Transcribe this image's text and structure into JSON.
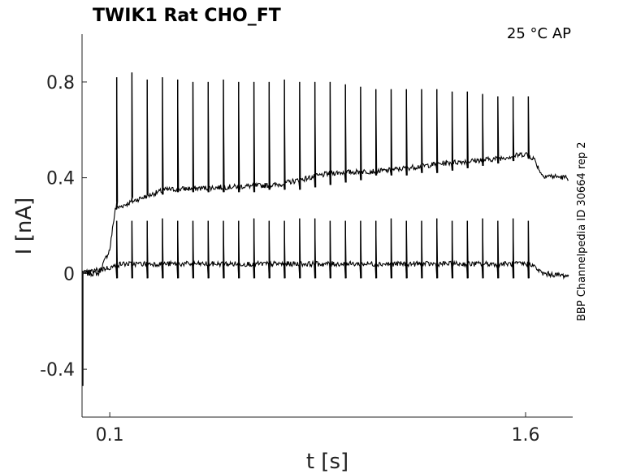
{
  "chart_data": {
    "type": "line",
    "title": "TWIK1  Rat  CHO_FT",
    "annotation": "25 °C  AP",
    "side_label": "BBP Channelpedia ID 30664 rep 2",
    "xlabel": "t [s]",
    "ylabel": "I [nA]",
    "xlim": [
      0.0,
      1.77
    ],
    "ylim": [
      -0.6,
      1.0
    ],
    "xticks": [
      0.1,
      1.6
    ],
    "xtick_labels": [
      "0.1",
      "1.6"
    ],
    "yticks": [
      -0.4,
      0,
      0.4,
      0.8
    ],
    "ytick_labels": [
      "-0.4",
      "0",
      "0.4",
      "0.8"
    ],
    "grid": false,
    "line_color": "#000000",
    "spike_times": [
      0.125,
      0.18,
      0.235,
      0.29,
      0.345,
      0.4,
      0.455,
      0.51,
      0.565,
      0.62,
      0.675,
      0.73,
      0.785,
      0.84,
      0.895,
      0.95,
      1.005,
      1.06,
      1.115,
      1.17,
      1.225,
      1.28,
      1.335,
      1.39,
      1.445,
      1.5,
      1.555,
      1.61
    ],
    "series": [
      {
        "baseline": [
          [
            0.0,
            0.0
          ],
          [
            0.06,
            0.0
          ],
          [
            0.1,
            0.1
          ],
          [
            0.12,
            0.27
          ],
          [
            0.2,
            0.31
          ],
          [
            0.3,
            0.35
          ],
          [
            0.5,
            0.36
          ],
          [
            0.7,
            0.37
          ],
          [
            0.9,
            0.42
          ],
          [
            1.1,
            0.43
          ],
          [
            1.3,
            0.46
          ],
          [
            1.5,
            0.48
          ],
          [
            1.6,
            0.5
          ],
          [
            1.63,
            0.48
          ],
          [
            1.66,
            0.41
          ],
          [
            1.75,
            0.4
          ]
        ],
        "spike_peaks": [
          0.82,
          0.84,
          0.81,
          0.82,
          0.81,
          0.8,
          0.8,
          0.81,
          0.8,
          0.8,
          0.8,
          0.81,
          0.8,
          0.8,
          0.8,
          0.79,
          0.78,
          0.77,
          0.77,
          0.77,
          0.77,
          0.77,
          0.76,
          0.76,
          0.75,
          0.74,
          0.74,
          0.74
        ],
        "spike_troughs": [
          0.3,
          0.32,
          0.33,
          0.33,
          0.34,
          0.34,
          0.34,
          0.34,
          0.34,
          0.34,
          0.35,
          0.35,
          0.35,
          0.36,
          0.37,
          0.38,
          0.39,
          0.41,
          0.41,
          0.41,
          0.42,
          0.42,
          0.43,
          0.44,
          0.45,
          0.46,
          0.47,
          0.48
        ]
      },
      {
        "baseline": [
          [
            0.0,
            0.0
          ],
          [
            0.12,
            0.03
          ],
          [
            0.14,
            0.04
          ],
          [
            0.3,
            0.04
          ],
          [
            0.5,
            0.04
          ],
          [
            0.7,
            0.04
          ],
          [
            0.9,
            0.04
          ],
          [
            1.1,
            0.04
          ],
          [
            1.3,
            0.04
          ],
          [
            1.5,
            0.04
          ],
          [
            1.62,
            0.04
          ],
          [
            1.66,
            0.0
          ],
          [
            1.75,
            -0.01
          ]
        ],
        "spike_peaks": [
          0.22,
          0.22,
          0.22,
          0.23,
          0.22,
          0.22,
          0.22,
          0.22,
          0.22,
          0.23,
          0.22,
          0.22,
          0.23,
          0.23,
          0.22,
          0.22,
          0.22,
          0.22,
          0.23,
          0.22,
          0.22,
          0.23,
          0.22,
          0.22,
          0.23,
          0.22,
          0.23,
          0.22
        ],
        "spike_troughs": [
          -0.02,
          -0.02,
          -0.02,
          -0.02,
          -0.02,
          -0.02,
          -0.02,
          -0.02,
          -0.02,
          -0.02,
          -0.02,
          -0.02,
          -0.02,
          -0.02,
          -0.02,
          -0.02,
          -0.02,
          -0.02,
          -0.02,
          -0.02,
          -0.02,
          -0.02,
          -0.02,
          -0.02,
          -0.02,
          -0.02,
          -0.02,
          -0.02
        ]
      }
    ],
    "initial_transient": {
      "t": 0.0,
      "y_min": -0.47
    }
  }
}
